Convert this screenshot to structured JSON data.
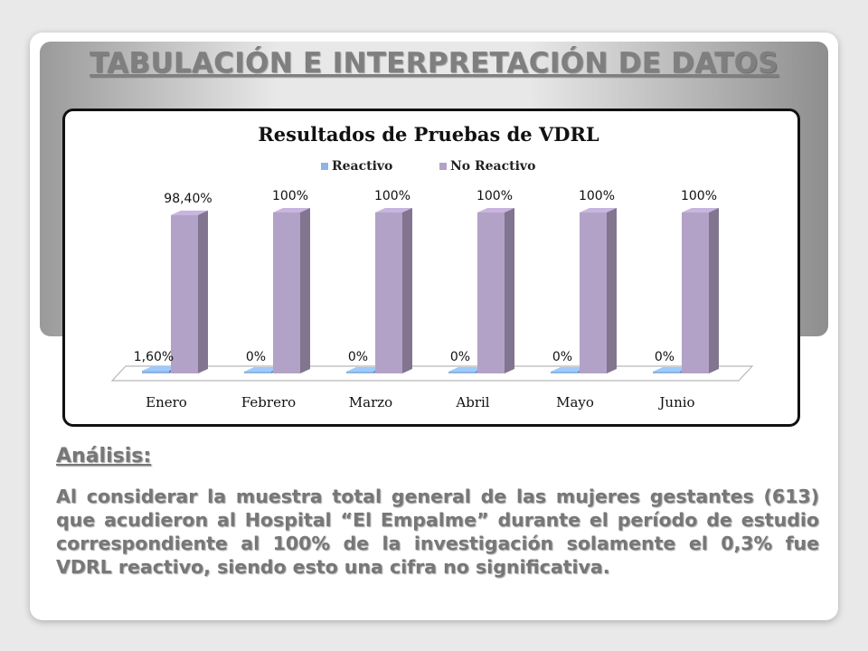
{
  "slide": {
    "title": "TABULACIÓN E INTERPRETACIÓN DE DATOS",
    "analysis_heading": "Análisis:",
    "analysis_text": "Al considerar la muestra total general de las mujeres gestantes (613) que acudieron al Hospital “El Empalme” durante el período de estudio correspondiente al 100% de la investigación solamente el 0,3% fue VDRL reactivo, siendo esto una cifra no significativa."
  },
  "chart_data": {
    "type": "bar",
    "title": "Resultados de Pruebas de VDRL",
    "categories": [
      "Enero",
      "Febrero",
      "Marzo",
      "Abril",
      "Mayo",
      "Junio"
    ],
    "series": [
      {
        "name": "Reactivo",
        "color": "#8db4e2",
        "values": [
          1.6,
          0,
          0,
          0,
          0,
          0
        ],
        "labels": [
          "1,60%",
          "0%",
          "0%",
          "0%",
          "0%",
          "0%"
        ]
      },
      {
        "name": "No Reactivo",
        "color": "#b3a2c7",
        "values": [
          98.4,
          100,
          100,
          100,
          100,
          100
        ],
        "labels": [
          "98,40%",
          "100%",
          "100%",
          "100%",
          "100%",
          "100%"
        ]
      }
    ],
    "ylim": [
      0,
      100
    ],
    "grid": false,
    "legend": "top-center",
    "style": "3d-column"
  }
}
